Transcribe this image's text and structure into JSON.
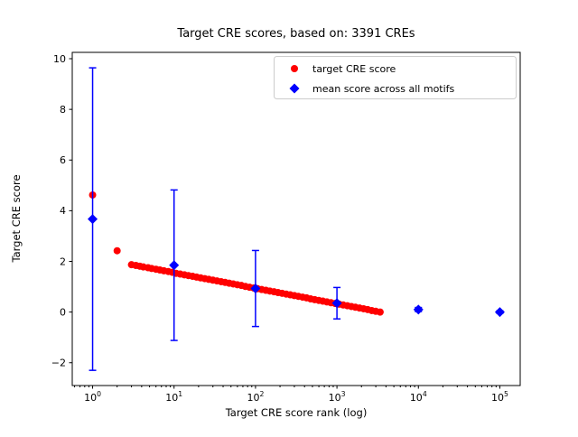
{
  "chart_data": {
    "type": "scatter",
    "title": "Target CRE scores, based on: 3391 CREs",
    "xlabel": "Target CRE score rank (log)",
    "ylabel": "Target CRE score",
    "x_scale": "log",
    "xlim_log10": [
      -0.25,
      5.25
    ],
    "ylim": [
      -2.9,
      10.25
    ],
    "x_ticks_exponents": [
      0,
      1,
      2,
      3,
      4,
      5
    ],
    "y_ticks": [
      -2,
      0,
      2,
      4,
      6,
      8,
      10
    ],
    "grid": false,
    "legend_position": "upper right",
    "legend": [
      {
        "label": "target CRE score",
        "marker": "circle",
        "color": "#ff0000"
      },
      {
        "label": "mean score across all motifs",
        "marker": "diamond",
        "color": "#0000ff"
      }
    ],
    "series": [
      {
        "name": "target CRE score",
        "marker": "circle",
        "color": "#ff0000",
        "points": [
          [
            1,
            4.62
          ],
          [
            2,
            2.42
          ],
          [
            3,
            1.87
          ],
          [
            3.4,
            1.84
          ],
          [
            3.8,
            1.81
          ],
          [
            4.2,
            1.78
          ],
          [
            4.8,
            1.75
          ],
          [
            5.3,
            1.72
          ],
          [
            6,
            1.69
          ],
          [
            6.7,
            1.66
          ],
          [
            7.5,
            1.63
          ],
          [
            8.5,
            1.6
          ],
          [
            9.5,
            1.57
          ],
          [
            10.6,
            1.53
          ],
          [
            11.9,
            1.5
          ],
          [
            13.4,
            1.47
          ],
          [
            15,
            1.44
          ],
          [
            16.9,
            1.41
          ],
          [
            18.9,
            1.38
          ],
          [
            21.2,
            1.35
          ],
          [
            23.8,
            1.32
          ],
          [
            26.7,
            1.29
          ],
          [
            30,
            1.26
          ],
          [
            33.6,
            1.23
          ],
          [
            37.8,
            1.2
          ],
          [
            42.4,
            1.17
          ],
          [
            47.5,
            1.14
          ],
          [
            53.3,
            1.11
          ],
          [
            59.8,
            1.08
          ],
          [
            67.1,
            1.05
          ],
          [
            75.3,
            1.01
          ],
          [
            84.5,
            0.98
          ],
          [
            94.8,
            0.95
          ],
          [
            106,
            0.92
          ],
          [
            119,
            0.89
          ],
          [
            134,
            0.86
          ],
          [
            150,
            0.83
          ],
          [
            169,
            0.8
          ],
          [
            189,
            0.77
          ],
          [
            212,
            0.74
          ],
          [
            238,
            0.71
          ],
          [
            267,
            0.68
          ],
          [
            300,
            0.65
          ],
          [
            336,
            0.62
          ],
          [
            378,
            0.59
          ],
          [
            424,
            0.56
          ],
          [
            475,
            0.52
          ],
          [
            533,
            0.49
          ],
          [
            598,
            0.46
          ],
          [
            671,
            0.43
          ],
          [
            753,
            0.4
          ],
          [
            845,
            0.37
          ],
          [
            948,
            0.34
          ],
          [
            1064,
            0.31
          ],
          [
            1194,
            0.28
          ],
          [
            1340,
            0.25
          ],
          [
            1503,
            0.22
          ],
          [
            1686,
            0.19
          ],
          [
            1892,
            0.16
          ],
          [
            2123,
            0.13
          ],
          [
            2382,
            0.1
          ],
          [
            2673,
            0.06
          ],
          [
            2999,
            0.03
          ],
          [
            3391,
            0.0
          ]
        ]
      },
      {
        "name": "mean score across all motifs",
        "marker": "diamond",
        "color": "#0000ff",
        "x": [
          1,
          10,
          100,
          1000,
          10000,
          100000
        ],
        "y": [
          3.67,
          1.85,
          0.93,
          0.35,
          0.1,
          0.0
        ],
        "yerr": [
          5.97,
          2.97,
          1.5,
          0.62,
          0.08,
          0.05
        ]
      }
    ]
  }
}
